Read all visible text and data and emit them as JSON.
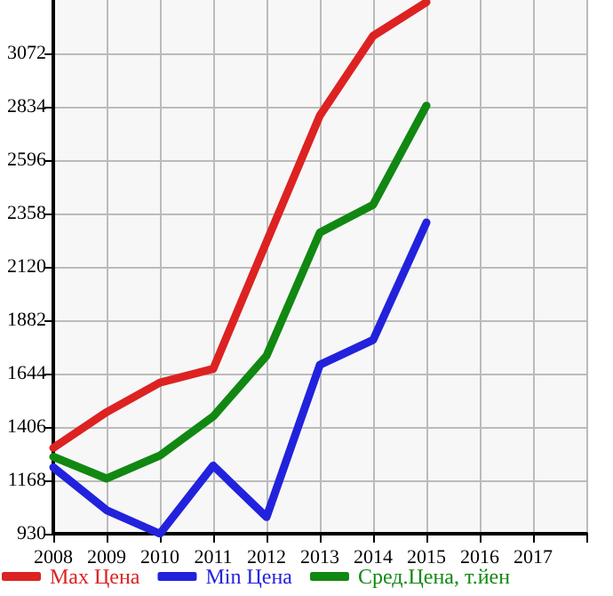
{
  "chart_data": {
    "type": "line",
    "x": [
      2008,
      2009,
      2010,
      2011,
      2012,
      2013,
      2014,
      2015
    ],
    "series": [
      {
        "name": "Max Цена",
        "color": "#dd2222",
        "values": [
          1313,
          1472,
          1604,
          1665,
          2231,
          2794,
          3150,
          3300
        ]
      },
      {
        "name": "Min Цена",
        "color": "#2222dd",
        "values": [
          1226,
          1035,
          930,
          1234,
          1004,
          1683,
          1794,
          2318
        ]
      },
      {
        "name": "Сред.Цена, т.йен",
        "color": "#118811",
        "values": [
          1273,
          1176,
          1279,
          1453,
          1723,
          2273,
          2397,
          2839
        ]
      }
    ],
    "xlim": [
      2008,
      2018
    ],
    "xticks": [
      2008,
      2009,
      2010,
      2011,
      2012,
      2013,
      2014,
      2015,
      2016,
      2017,
      {
        "value": 2018,
        "label": null
      }
    ],
    "ylim": [
      930,
      3310
    ],
    "yticks": [
      930,
      1168,
      1406,
      1644,
      1882,
      2120,
      2358,
      2596,
      2834,
      3072
    ],
    "grid": true,
    "legend": "bottom",
    "marker": "none",
    "line_style": "solid"
  }
}
